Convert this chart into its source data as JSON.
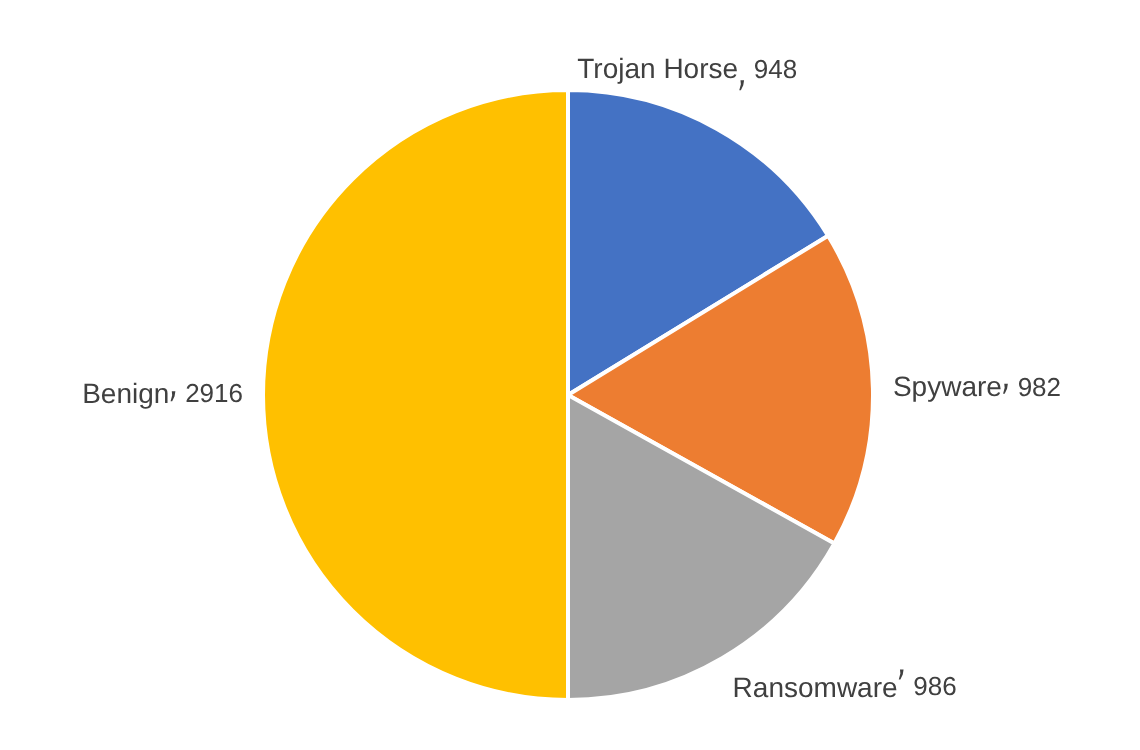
{
  "chart_data": {
    "type": "pie",
    "categories": [
      "Trojan Horse",
      "Spyware",
      "Ransomware",
      "Benign"
    ],
    "values": [
      948,
      982,
      986,
      2916
    ],
    "colors": [
      "#4472c4",
      "#ed7d31",
      "#a5a5a5",
      "#ffc000"
    ],
    "data_labels": true,
    "legend": false
  }
}
